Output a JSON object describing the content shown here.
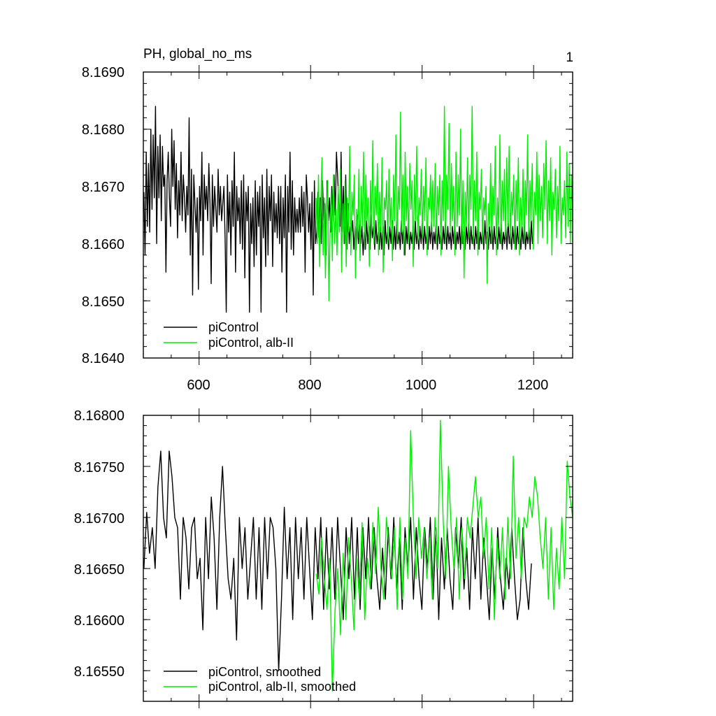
{
  "chart_data": [
    {
      "type": "line",
      "title": "PH, global_no_ms",
      "corner_label": "1",
      "xlabel": "",
      "ylabel": "",
      "xlim": [
        500,
        1270
      ],
      "ylim": [
        8.164,
        8.169
      ],
      "x_ticks": [
        600,
        800,
        1000,
        1200
      ],
      "x_tick_labels": [
        "600",
        "800",
        "1000",
        "1200"
      ],
      "y_ticks": [
        8.164,
        8.165,
        8.166,
        8.167,
        8.168,
        8.169
      ],
      "y_tick_labels": [
        "8.1640",
        "8.1650",
        "8.1660",
        "8.1670",
        "8.1680",
        "8.1690"
      ],
      "grid": false,
      "legend_position": "bottom-left",
      "series": [
        {
          "name": "piControl",
          "color": "#000000",
          "x_start": 501,
          "x_end": 1200,
          "x_step": 2,
          "y_min": 8.1647,
          "y_max": 8.1685,
          "values": [
            8.1669,
            8.1658,
            8.1676,
            8.1663,
            8.1674,
            8.1662,
            8.168,
            8.1666,
            8.1679,
            8.1668,
            8.1684,
            8.166,
            8.1677,
            8.1668,
            8.1679,
            8.1664,
            8.1677,
            8.167,
            8.1672,
            8.1655,
            8.1671,
            8.1676,
            8.1668,
            8.1663,
            8.168,
            8.167,
            8.1678,
            8.1666,
            8.1674,
            8.1661,
            8.1671,
            8.1665,
            8.1676,
            8.1664,
            8.1672,
            8.1668,
            8.1662,
            8.167,
            8.1665,
            8.1682,
            8.1658,
            8.1673,
            8.1651,
            8.1672,
            8.1667,
            8.1662,
            8.1668,
            8.1652,
            8.167,
            8.1664,
            8.1676,
            8.1658,
            8.1672,
            8.1666,
            8.167,
            8.1664,
            8.1674,
            8.1667,
            8.1653,
            8.1672,
            8.1663,
            8.167,
            8.1666,
            8.1662,
            8.1673,
            8.1665,
            8.167,
            8.1664,
            8.1667,
            8.167,
            8.1661,
            8.1648,
            8.1672,
            8.1662,
            8.1669,
            8.1658,
            8.1671,
            8.1663,
            8.1676,
            8.1655,
            8.167,
            8.1664,
            8.1668,
            8.166,
            8.1671,
            8.1659,
            8.1672,
            8.1654,
            8.1669,
            8.1664,
            8.167,
            8.1648,
            8.1667,
            8.166,
            8.1668,
            8.1656,
            8.1671,
            8.1658,
            8.1669,
            8.1663,
            8.167,
            8.1648,
            8.1672,
            8.1661,
            8.1668,
            8.1656,
            8.1673,
            8.1658,
            8.167,
            8.1664,
            8.1672,
            8.1656,
            8.1669,
            8.1662,
            8.1667,
            8.1661,
            8.167,
            8.166,
            8.167,
            8.1655,
            8.1668,
            8.1661,
            8.1672,
            8.1648,
            8.167,
            8.1662,
            8.1676,
            8.1659,
            8.1671,
            8.1658,
            8.1668,
            8.1662,
            8.1666,
            8.1662,
            8.1668,
            8.1662,
            8.167,
            8.1663,
            8.1669,
            8.1655,
            8.1672,
            8.1668,
            8.1662,
            8.1667,
            8.1659,
            8.1669,
            8.1651,
            8.1671,
            8.166,
            8.1662,
            8.1669,
            8.1661,
            8.1668,
            8.166,
            8.1671,
            8.1664,
            8.1667,
            8.1658,
            8.1671,
            8.1664,
            8.1668,
            8.1662,
            8.167,
            8.1664,
            8.1672,
            8.1665,
            8.1676,
            8.1672,
            8.1667,
            8.1663,
            8.1676,
            8.1662,
            8.167,
            8.166,
            8.1672,
            8.1659,
            8.1667,
            8.166,
            8.1663,
            8.1662,
            8.1664,
            8.1659,
            8.1663,
            8.1659,
            8.1665,
            8.166,
            8.1664,
            8.166,
            8.1663,
            8.1658,
            8.1662,
            8.1659,
            8.1664,
            8.166,
            8.1663,
            8.1659,
            8.1665,
            8.1661,
            8.1663,
            8.1659,
            8.1664,
            8.166,
            8.1662,
            8.1659,
            8.1663,
            8.1659,
            8.1663,
            8.1658,
            8.1664,
            8.166,
            8.1662,
            8.1659,
            8.1663,
            8.166,
            8.1664,
            8.1659,
            8.1663,
            8.1659,
            8.1664,
            8.166,
            8.1662,
            8.1659,
            8.1664,
            8.166,
            8.1663,
            8.1658,
            8.1663,
            8.166,
            8.1664,
            8.1659,
            8.1662,
            8.166,
            8.1663,
            8.1659,
            8.1664,
            8.166,
            8.1662,
            8.1659,
            8.1663,
            8.166,
            8.1664,
            8.1659,
            8.1663,
            8.166,
            8.1662,
            8.1659,
            8.1663,
            8.166,
            8.1664,
            8.1659,
            8.1662,
            8.166,
            8.1664,
            8.1659,
            8.1663,
            8.166,
            8.1662,
            8.1659,
            8.1663,
            8.166,
            8.1664,
            8.1659,
            8.1663,
            8.166,
            8.1662,
            8.1659,
            8.1663,
            8.166,
            8.1664,
            8.1659,
            8.1662,
            8.166,
            8.1663,
            8.1659,
            8.1664,
            8.166,
            8.1662,
            8.1659,
            8.1663,
            8.166,
            8.1664,
            8.1659,
            8.1663,
            8.166,
            8.1662,
            8.1659,
            8.1663,
            8.166,
            8.1664,
            8.1659,
            8.1662,
            8.166,
            8.1663,
            8.1659,
            8.1664,
            8.166,
            8.1662,
            8.1659,
            8.1663,
            8.166,
            8.1664,
            8.1659,
            8.1663,
            8.166,
            8.1662,
            8.1659,
            8.1663,
            8.166,
            8.1664,
            8.1659,
            8.1662,
            8.166,
            8.1663,
            8.1659,
            8.1664,
            8.166,
            8.1662,
            8.1659,
            8.1663,
            8.166,
            8.1664,
            8.1659,
            8.1663,
            8.166,
            8.1662,
            8.1659,
            8.1663,
            8.166,
            8.1664,
            8.1659,
            8.1662,
            8.166,
            8.1663,
            8.1659,
            8.1664,
            8.166,
            8.1662
          ]
        },
        {
          "name": "piControl, alb-II",
          "color": "#00ee00",
          "x_start": 810,
          "x_end": 1270,
          "x_step": 2,
          "values": [
            8.1668,
            8.166,
            8.1672,
            8.1656,
            8.1666,
            8.1675,
            8.1658,
            8.1668,
            8.1654,
            8.1665,
            8.1671,
            8.165,
            8.1662,
            8.1669,
            8.1657,
            8.1672,
            8.166,
            8.1666,
            8.1658,
            8.167,
            8.1662,
            8.1673,
            8.1655,
            8.1667,
            8.166,
            8.1671,
            8.1656,
            8.1668,
            8.1662,
            8.1677,
            8.1658,
            8.1669,
            8.1665,
            8.1672,
            8.1654,
            8.1666,
            8.1661,
            8.1673,
            8.1657,
            8.167,
            8.1663,
            8.1676,
            8.1659,
            8.1672,
            8.1664,
            8.1668,
            8.1656,
            8.1671,
            8.1662,
            8.1678,
            8.166,
            8.167,
            8.1665,
            8.1674,
            8.1658,
            8.1669,
            8.1662,
            8.1675,
            8.1655,
            8.1668,
            8.1666,
            8.1671,
            8.166,
            8.1673,
            8.1663,
            8.1668,
            8.1657,
            8.1672,
            8.1664,
            8.1679,
            8.166,
            8.167,
            8.1666,
            8.1683,
            8.1662,
            8.1672,
            8.1658,
            8.1676,
            8.1664,
            8.167,
            8.166,
            8.1674,
            8.1666,
            8.1671,
            8.1656,
            8.1672,
            8.1664,
            8.1677,
            8.166,
            8.1668,
            8.1665,
            8.1673,
            8.1661,
            8.167,
            8.1664,
            8.1675,
            8.1658,
            8.1668,
            8.1666,
            8.1672,
            8.1662,
            8.1671,
            8.1663,
            8.1674,
            8.166,
            8.167,
            8.1665,
            8.1672,
            8.1658,
            8.1671,
            8.1664,
            8.1684,
            8.166,
            8.1672,
            8.1666,
            8.1681,
            8.1662,
            8.1674,
            8.1664,
            8.167,
            8.1658,
            8.1676,
            8.1663,
            8.1672,
            8.1665,
            8.168,
            8.166,
            8.1671,
            8.1654,
            8.1669,
            8.1663,
            8.1675,
            8.1661,
            8.1672,
            8.1666,
            8.1684,
            8.166,
            8.1671,
            8.1664,
            8.1676,
            8.1658,
            8.1669,
            8.1666,
            8.1673,
            8.166,
            8.1668,
            8.1665,
            8.167,
            8.1653,
            8.1667,
            8.1663,
            8.1674,
            8.166,
            8.167,
            8.1665,
            8.1677,
            8.1658,
            8.1668,
            8.1663,
            8.1679,
            8.166,
            8.1671,
            8.1664,
            8.1673,
            8.1661,
            8.1675,
            8.1663,
            8.1677,
            8.166,
            8.1669,
            8.1665,
            8.1672,
            8.1659,
            8.1671,
            8.1664,
            8.1675,
            8.1658,
            8.1668,
            8.1663,
            8.1673,
            8.166,
            8.1671,
            8.1665,
            8.1679,
            8.1661,
            8.1671,
            8.1664,
            8.1674,
            8.1659,
            8.1669,
            8.1665,
            8.1676,
            8.166,
            8.1672,
            8.1664,
            8.167,
            8.1661,
            8.1674,
            8.1666,
            8.1678,
            8.166,
            8.1671,
            8.1664,
            8.1675,
            8.1658,
            8.1669,
            8.1666,
            8.1673,
            8.1661,
            8.167,
            8.1664,
            8.1677,
            8.166,
            8.1668,
            8.1665,
            8.1671,
            8.1661,
            8.1676,
            8.1663,
            8.1674,
            8.166,
            8.1672,
            8.1664
          ]
        }
      ]
    },
    {
      "type": "line",
      "title": "",
      "xlabel": "",
      "ylabel": "",
      "xlim": [
        500,
        1270
      ],
      "ylim": [
        8.1652,
        8.168
      ],
      "x_ticks": [
        600,
        800,
        1000,
        1200
      ],
      "y_ticks": [
        8.1655,
        8.166,
        8.1665,
        8.167,
        8.1675,
        8.168
      ],
      "y_tick_labels": [
        "8.16550",
        "8.16600",
        "8.16650",
        "8.16700",
        "8.16750",
        "8.16800"
      ],
      "grid": false,
      "legend_position": "bottom-left",
      "series": [
        {
          "name": "piControl, smoothed",
          "color": "#000000",
          "x_start": 501,
          "x_end": 1196,
          "x_step": 5,
          "values": [
            8.1665,
            8.16705,
            8.16665,
            8.1669,
            8.1665,
            8.1673,
            8.16765,
            8.167,
            8.1668,
            8.16765,
            8.1674,
            8.167,
            8.1669,
            8.1662,
            8.167,
            8.1668,
            8.1663,
            8.1669,
            8.167,
            8.1664,
            8.1666,
            8.1659,
            8.167,
            8.1664,
            8.1672,
            8.1668,
            8.1661,
            8.167,
            8.1675,
            8.1669,
            8.1664,
            8.1662,
            8.1666,
            8.1658,
            8.167,
            8.1665,
            8.1669,
            8.1662,
            8.1666,
            8.167,
            8.1662,
            8.1669,
            8.1661,
            8.167,
            8.1664,
            8.167,
            8.1669,
            8.1665,
            8.1655,
            8.1662,
            8.1671,
            8.1664,
            8.1669,
            8.166,
            8.167,
            8.1664,
            8.1669,
            8.1662,
            8.167,
            8.1665,
            8.166,
            8.1669,
            8.1664,
            8.167,
            8.1661,
            8.1669,
            8.1663,
            8.1669,
            8.1662,
            8.167,
            8.1665,
            8.166,
            8.1669,
            8.1664,
            8.167,
            8.1662,
            8.1669,
            8.1661,
            8.1669,
            8.1664,
            8.167,
            8.1663,
            8.1669,
            8.1664,
            8.1661,
            8.1667,
            8.1662,
            8.1669,
            8.1664,
            8.167,
            8.1663,
            8.1668,
            8.1661,
            8.1669,
            8.1665,
            8.167,
            8.1662,
            8.1669,
            8.1664,
            8.1661,
            8.1669,
            8.1665,
            8.167,
            8.1662,
            8.1669,
            8.166,
            8.1668,
            8.1663,
            8.1669,
            8.1664,
            8.1661,
            8.1669,
            8.1665,
            8.167,
            8.1663,
            8.1667,
            8.1661,
            8.1669,
            8.1664,
            8.167,
            8.1662,
            8.1668,
            8.1664,
            8.166,
            8.1667,
            8.1662,
            8.1669,
            8.1664,
            8.1661,
            8.1666,
            8.1663,
            8.1669,
            8.1664,
            8.166,
            8.1662,
            8.1669,
            8.1664,
            8.1661,
            8.16655
          ]
        },
        {
          "name": "piControl, alb-II, smoothed",
          "color": "#00ee00",
          "x_start": 810,
          "x_end": 1270,
          "x_step": 5,
          "values": [
            8.16645,
            8.16625,
            8.1668,
            8.1664,
            8.1661,
            8.1666,
            8.1653,
            8.1661,
            8.1665,
            8.16585,
            8.16665,
            8.166,
            8.1668,
            8.1664,
            8.1659,
            8.1666,
            8.1662,
            8.16695,
            8.166,
            8.1666,
            8.1663,
            8.16695,
            8.16645,
            8.1671,
            8.1665,
            8.1662,
            8.167,
            8.1667,
            8.1664,
            8.1669,
            8.1661,
            8.167,
            8.1662,
            8.1668,
            8.1664,
            8.16785,
            8.167,
            8.1664,
            8.167,
            8.1666,
            8.1669,
            8.1664,
            8.1668,
            8.1662,
            8.167,
            8.1665,
            8.16795,
            8.167,
            8.1664,
            8.1675,
            8.1669,
            8.1665,
            8.167,
            8.1662,
            8.1669,
            8.1664,
            8.167,
            8.1668,
            8.1671,
            8.1674,
            8.167,
            8.1672,
            8.1666,
            8.167,
            8.1663,
            8.1669,
            8.166,
            8.1668,
            8.1664,
            8.1669,
            8.1662,
            8.167,
            8.1664,
            8.1676,
            8.1666,
            8.167,
            8.1664,
            8.167,
            8.1669,
            8.1672,
            8.167,
            8.1674,
            8.1672,
            8.1668,
            8.1665,
            8.167,
            8.1662,
            8.1669,
            8.1661,
            8.1667,
            8.1663,
            8.167,
            8.1664,
            8.16755,
            8.1672,
            8.167
          ]
        }
      ]
    }
  ]
}
